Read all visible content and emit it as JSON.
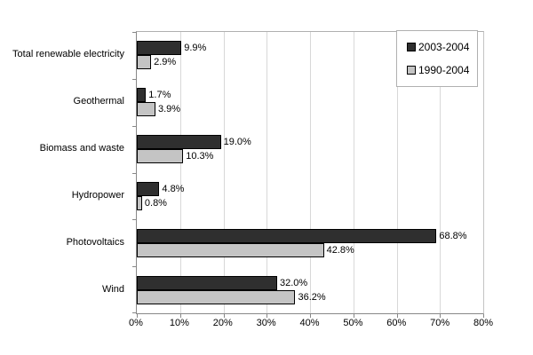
{
  "chart_data": {
    "type": "bar",
    "orientation": "horizontal",
    "title": "",
    "categories": [
      "Total renewable electricity",
      "Geothermal",
      "Biomass and waste",
      "Hydropower",
      "Photovoltaics",
      "Wind"
    ],
    "series": [
      {
        "name": "2003-2004",
        "color": "#2f2f2f",
        "values": [
          9.9,
          1.7,
          19.0,
          4.8,
          68.8,
          32.0
        ],
        "labels": [
          "9.9%",
          "1.7%",
          "19.0%",
          "4.8%",
          "68.8%",
          "32.0%"
        ]
      },
      {
        "name": "1990-2004",
        "color": "#c4c4c4",
        "values": [
          2.9,
          3.9,
          10.3,
          0.8,
          42.8,
          36.2
        ],
        "labels": [
          "2.9%",
          "3.9%",
          "10.3%",
          "0.8%",
          "42.8%",
          "36.2%"
        ]
      }
    ],
    "xlabel": "",
    "ylabel": "",
    "xlim": [
      0,
      80
    ],
    "x_ticks": [
      "0%",
      "10%",
      "20%",
      "30%",
      "40%",
      "50%",
      "60%",
      "70%",
      "80%"
    ],
    "grid": "vertical-gridlines-on",
    "legend_position": "top-right",
    "bar_border_color": "#000000"
  }
}
